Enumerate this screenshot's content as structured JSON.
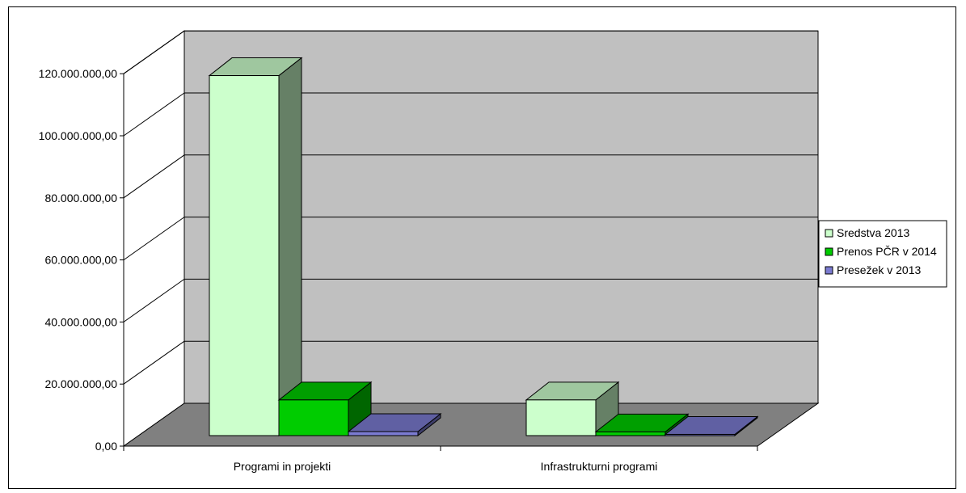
{
  "chart_data": {
    "type": "bar",
    "title": "",
    "xlabel": "",
    "ylabel": "",
    "categories": [
      "Programi in projekti",
      "Infrastrukturni programi"
    ],
    "series": [
      {
        "name": "Sredstva 2013",
        "values": [
          116000000,
          11500000
        ],
        "color": "#ccffcc"
      },
      {
        "name": "Prenos PČR v 2014",
        "values": [
          11500000,
          1200000
        ],
        "color": "#00cc00"
      },
      {
        "name": "Presežek v 2013",
        "values": [
          1300000,
          400000
        ],
        "color": "#7b7bd1"
      }
    ],
    "y_ticks": [
      "0,00",
      "20.000.000,00",
      "40.000.000,00",
      "60.000.000,00",
      "80.000.000,00",
      "100.000.000,00",
      "120.000.000,00"
    ],
    "ylim": [
      0,
      120000000
    ],
    "grid": true,
    "legend_position": "right"
  }
}
